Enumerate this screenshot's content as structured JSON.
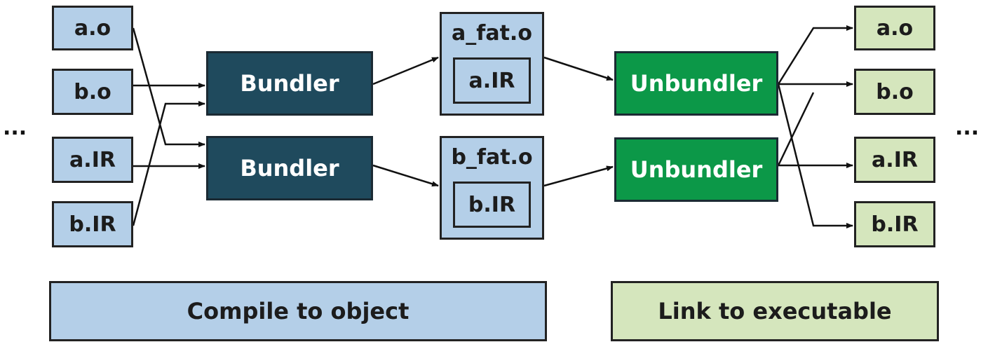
{
  "inputs": [
    "a.o",
    "b.o",
    "a.IR",
    "b.IR"
  ],
  "bundlers": [
    "Bundler",
    "Bundler"
  ],
  "fat_objects": [
    {
      "title": "a_fat.o",
      "inner": "a.IR"
    },
    {
      "title": "b_fat.o",
      "inner": "b.IR"
    }
  ],
  "unbundlers": [
    "Unbundler",
    "Unbundler"
  ],
  "outputs": [
    "a.o",
    "b.o",
    "a.IR",
    "b.IR"
  ],
  "ellipsis": "...",
  "stages": {
    "compile": "Compile to object",
    "link": "Link to executable"
  },
  "colors": {
    "input_fill": "#b4cfe8",
    "output_fill": "#d5e6bd",
    "bundler_fill": "#1f4a5d",
    "unbundler_fill": "#0c9848",
    "edge": "#111111"
  }
}
